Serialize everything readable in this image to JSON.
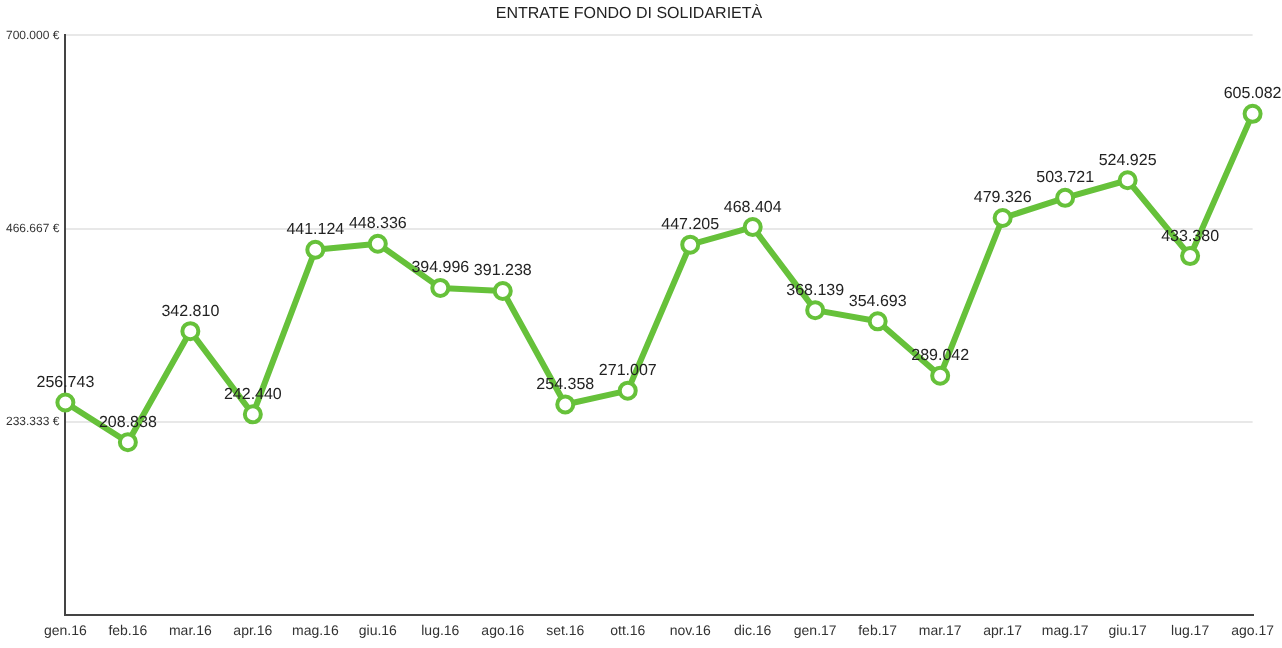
{
  "chart_data": {
    "type": "line",
    "title": "ENTRATE FONDO DI SOLIDARIETÀ",
    "categories": [
      "gen.16",
      "feb.16",
      "mar.16",
      "apr.16",
      "mag.16",
      "giu.16",
      "lug.16",
      "ago.16",
      "set.16",
      "ott.16",
      "nov.16",
      "dic.16",
      "gen.17",
      "feb.17",
      "mar.17",
      "apr.17",
      "mag.17",
      "giu.17",
      "lug.17",
      "ago.17"
    ],
    "series": [
      {
        "color": "#66c13a",
        "values": [
          256743,
          208838,
          342810,
          242440,
          441124,
          448336,
          394996,
          391238,
          254358,
          271007,
          447205,
          468404,
          368139,
          354693,
          289042,
          479326,
          503721,
          524925,
          433380,
          605082
        ],
        "value_labels": [
          "256.743",
          "208.838",
          "342.810",
          "242.440",
          "441.124",
          "448.336",
          "394.996",
          "391.238",
          "254.358",
          "271.007",
          "447.205",
          "468.404",
          "368.139",
          "354.693",
          "289.042",
          "479.326",
          "503.721",
          "524.925",
          "433.380",
          "605.082"
        ]
      }
    ],
    "ylim": [
      0,
      700000
    ],
    "yticks": [
      {
        "value": 233333,
        "label": "233.333 €"
      },
      {
        "value": 466667,
        "label": "466.667 €"
      },
      {
        "value": 700000,
        "label": "700.000 €"
      }
    ],
    "grid": "y",
    "legend": false,
    "marker": "circle",
    "line_style": "solid"
  }
}
